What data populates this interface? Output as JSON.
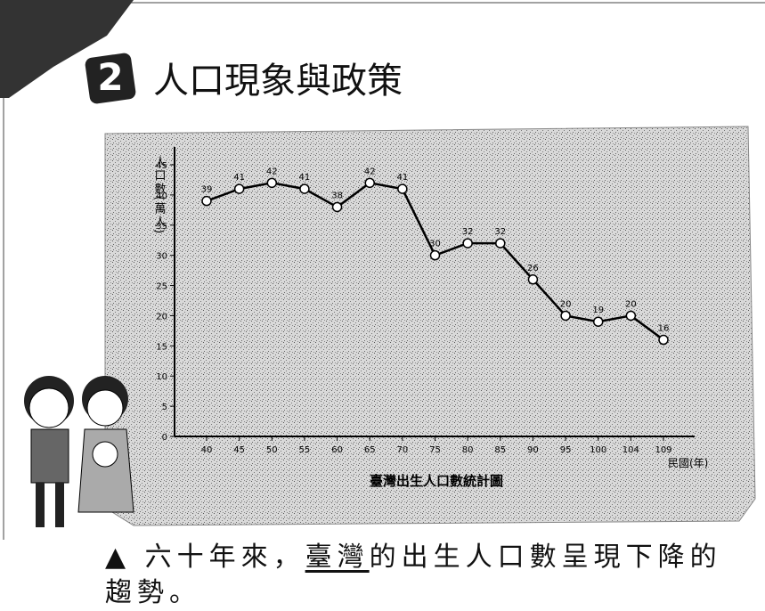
{
  "header": {
    "number": "2",
    "title": "人口現象與政策"
  },
  "chart_data": {
    "type": "line",
    "y_label": "人口數(萬人)",
    "x_label": "民國(年)",
    "caption": "臺灣出生人口數統計圖",
    "categories": [
      "40",
      "45",
      "50",
      "55",
      "60",
      "65",
      "70",
      "75",
      "80",
      "85",
      "90",
      "95",
      "100",
      "104",
      "109"
    ],
    "series": [
      {
        "color": "#000000",
        "values": [
          39,
          41,
          42,
          41,
          38,
          42,
          41,
          30,
          32,
          32,
          26,
          20,
          19,
          20,
          16
        ]
      }
    ],
    "ylim": [
      0,
      45
    ],
    "yticks": [
      0,
      5,
      10,
      15,
      20,
      25,
      30,
      35,
      40,
      45
    ]
  },
  "note": {
    "parts": [
      "六十年來，",
      "臺灣",
      "的出生人口數呈現下降的趨勢。"
    ]
  }
}
